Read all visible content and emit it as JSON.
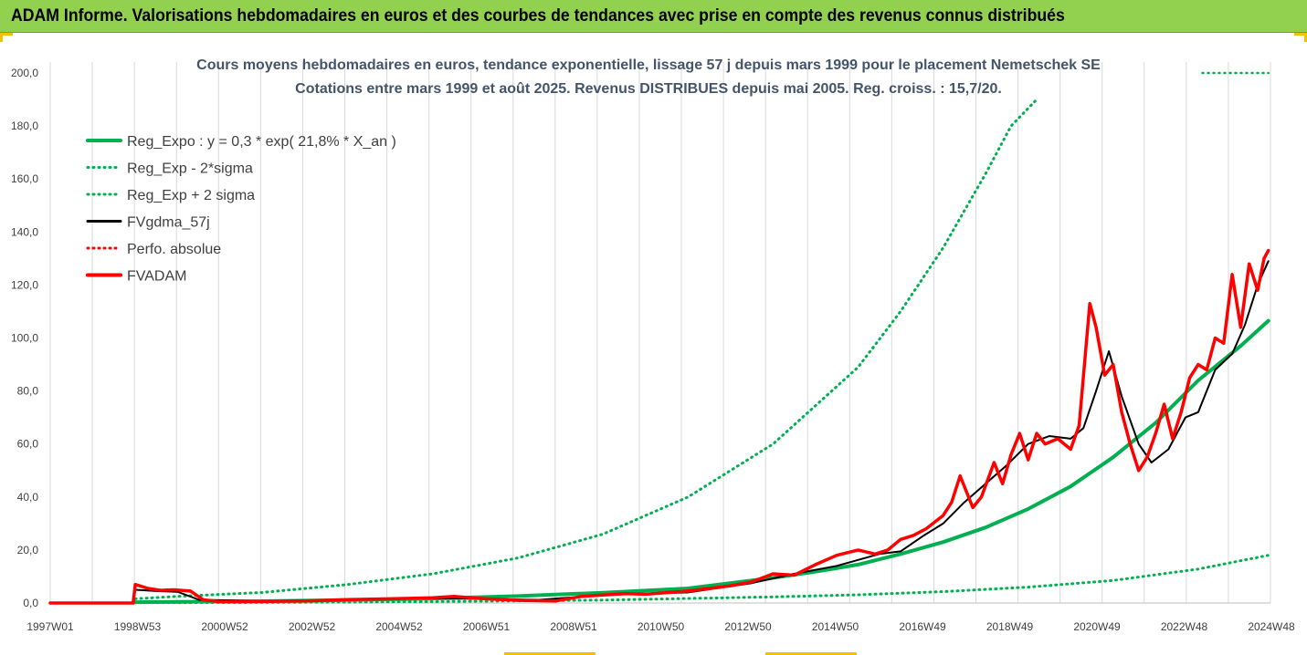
{
  "banner": {
    "title": "ADAM Informe. Valorisations hebdomadaires en euros et des courbes de tendances avec prise en compte des revenus connus distribués"
  },
  "colors": {
    "banner_bg": "#92d050",
    "green": "#00b050",
    "red": "#ff0000",
    "black": "#000000",
    "grid": "#d9d9d9"
  },
  "chart_data": {
    "type": "line",
    "title_lines": [
      "Cours moyens hebdomadaires en euros, tendance exponentielle, lissage 57 j depuis mars 1999 pour le placement Nemetschek SE",
      "Cotations entre mars 1999 et août 2025. Revenus DISTRIBUES depuis mai 2005. Reg. croiss. : 15,7/20."
    ],
    "xlabel": "",
    "ylabel": "",
    "x_tick_labels": [
      "1997W01",
      "1998W53",
      "2000W52",
      "2002W52",
      "2004W52",
      "2006W51",
      "2008W51",
      "2010W50",
      "2012W50",
      "2014W50",
      "2016W49",
      "2018W49",
      "2020W49",
      "2022W48",
      "2024W48"
    ],
    "x_range_years": [
      1997.0,
      2025.7
    ],
    "ylim": [
      0,
      200
    ],
    "y_tick_labels": [
      "0,0",
      "20,0",
      "40,0",
      "60,0",
      "80,0",
      "100,0",
      "120,0",
      "140,0",
      "160,0",
      "180,0",
      "200,0"
    ],
    "grid": "vertical",
    "legend_position": "top-left",
    "legend": [
      {
        "name": "Reg_Expo : y = 0,3 * exp( 21,8% *  X_an )",
        "style": "solid-thick",
        "color": "#00b050"
      },
      {
        "name": "Reg_Exp - 2*sigma",
        "style": "dotted",
        "color": "#00b050"
      },
      {
        "name": "Reg_Exp + 2 sigma",
        "style": "dotted",
        "color": "#00b050"
      },
      {
        "name": "FVgdma_57j",
        "style": "solid",
        "color": "#000000"
      },
      {
        "name": "Perfo. absolue",
        "style": "dotted",
        "color": "#ff0000"
      },
      {
        "name": "FVADAM",
        "style": "solid-thick",
        "color": "#ff0000"
      }
    ],
    "series": [
      {
        "name": "Reg_Expo : y = 0,3 * exp( 21,8% *  X_an )",
        "x": [
          1998.95,
          2000.0,
          2002.0,
          2004.0,
          2006.0,
          2008.0,
          2010.0,
          2012.0,
          2014.0,
          2015.0,
          2016.0,
          2017.0,
          2018.0,
          2019.0,
          2020.0,
          2021.0,
          2022.0,
          2023.0,
          2024.0,
          2025.0,
          2025.65
        ],
        "y": [
          0.3,
          0.4,
          0.7,
          1.1,
          1.7,
          2.6,
          3.9,
          5.5,
          9.5,
          11.8,
          14.5,
          18.5,
          23.0,
          28.5,
          35.5,
          44.0,
          55.0,
          68.0,
          84.0,
          97.0,
          106.5
        ]
      },
      {
        "name": "Reg_Exp - 2*sigma",
        "x": [
          1999.0,
          2002.0,
          2006.0,
          2010.0,
          2014.0,
          2016.0,
          2018.0,
          2020.0,
          2022.0,
          2024.0,
          2025.65
        ],
        "y": [
          0.1,
          0.2,
          0.5,
          1.1,
          2.3,
          3.1,
          4.3,
          6.0,
          8.5,
          12.8,
          18.0
        ]
      },
      {
        "name": "Reg_Exp + 2 sigma",
        "x": [
          1999.0,
          2000.0,
          2002.0,
          2004.0,
          2006.0,
          2008.0,
          2010.0,
          2012.0,
          2014.0,
          2016.0,
          2017.0,
          2018.0,
          2019.0,
          2019.6,
          2020.2
        ],
        "y": [
          1.6,
          2.5,
          4.0,
          7.0,
          11.0,
          17.0,
          26.0,
          40.0,
          60.0,
          89.0,
          110.0,
          134.0,
          162.0,
          180.0,
          190.0
        ]
      },
      {
        "name": "Reg_Exp + 2 sigma (plafond)",
        "x": [
          2024.1,
          2025.65
        ],
        "y": [
          200.0,
          200.0
        ]
      },
      {
        "name": "FVgdma_57j",
        "x": [
          1997.0,
          1998.95,
          1999.0,
          1999.5,
          2000.0,
          2000.5,
          2002.0,
          2004.0,
          2006.0,
          2008.5,
          2010.0,
          2012.0,
          2013.5,
          2014.5,
          2015.5,
          2016.5,
          2017.0,
          2017.5,
          2018.0,
          2018.5,
          2019.0,
          2019.5,
          2020.0,
          2020.5,
          2021.0,
          2021.3,
          2021.6,
          2021.9,
          2022.2,
          2022.6,
          2022.9,
          2023.3,
          2023.7,
          2024.0,
          2024.4,
          2024.8,
          2025.1,
          2025.4,
          2025.65
        ],
        "y": [
          0.0,
          0.0,
          5.0,
          4.5,
          4.2,
          1.2,
          0.8,
          1.2,
          1.8,
          1.2,
          3.0,
          4.0,
          7.5,
          11.0,
          14.0,
          18.5,
          19.5,
          25.0,
          30.0,
          38.0,
          45.0,
          52.0,
          60.0,
          63.0,
          62.0,
          66.0,
          80.0,
          95.0,
          78.0,
          60.0,
          53.0,
          58.0,
          70.0,
          72.0,
          88.0,
          94.0,
          105.0,
          120.0,
          129.0
        ]
      },
      {
        "name": "FVADAM",
        "x": [
          1997.0,
          1998.95,
          1999.0,
          1999.3,
          1999.6,
          1999.9,
          2000.3,
          2000.6,
          2001.0,
          2002.0,
          2003.0,
          2004.0,
          2005.0,
          2006.0,
          2006.5,
          2007.0,
          2008.0,
          2008.9,
          2009.5,
          2010.0,
          2010.5,
          2011.0,
          2012.0,
          2012.5,
          2013.0,
          2013.5,
          2014.0,
          2014.5,
          2015.0,
          2015.5,
          2016.0,
          2016.4,
          2016.7,
          2017.0,
          2017.3,
          2017.6,
          2018.0,
          2018.2,
          2018.4,
          2018.7,
          2018.9,
          2019.2,
          2019.4,
          2019.6,
          2019.8,
          2020.0,
          2020.2,
          2020.4,
          2020.7,
          2021.0,
          2021.2,
          2021.45,
          2021.6,
          2021.8,
          2022.0,
          2022.2,
          2022.4,
          2022.6,
          2022.8,
          2023.0,
          2023.2,
          2023.4,
          2023.6,
          2023.8,
          2024.0,
          2024.2,
          2024.4,
          2024.6,
          2024.8,
          2025.0,
          2025.2,
          2025.4,
          2025.55,
          2025.65
        ],
        "y": [
          0.0,
          0.0,
          7.0,
          5.5,
          4.8,
          5.0,
          4.5,
          1.2,
          0.5,
          0.6,
          0.8,
          1.3,
          1.6,
          2.0,
          2.5,
          1.8,
          1.0,
          0.8,
          2.5,
          3.0,
          3.5,
          3.3,
          4.5,
          5.5,
          6.5,
          8.0,
          11.0,
          10.5,
          14.5,
          18.0,
          20.0,
          18.5,
          20.0,
          24.0,
          25.5,
          28.0,
          33.0,
          38.0,
          48.0,
          36.0,
          40.0,
          53.0,
          45.0,
          56.0,
          64.0,
          54.0,
          64.0,
          60.0,
          62.0,
          58.0,
          67.0,
          113.0,
          104.0,
          86.0,
          90.0,
          72.0,
          60.0,
          50.0,
          55.0,
          64.0,
          75.0,
          62.0,
          72.0,
          85.0,
          90.0,
          88.0,
          100.0,
          98.0,
          124.0,
          104.0,
          128.0,
          118.0,
          130.0,
          133.0
        ]
      }
    ]
  }
}
